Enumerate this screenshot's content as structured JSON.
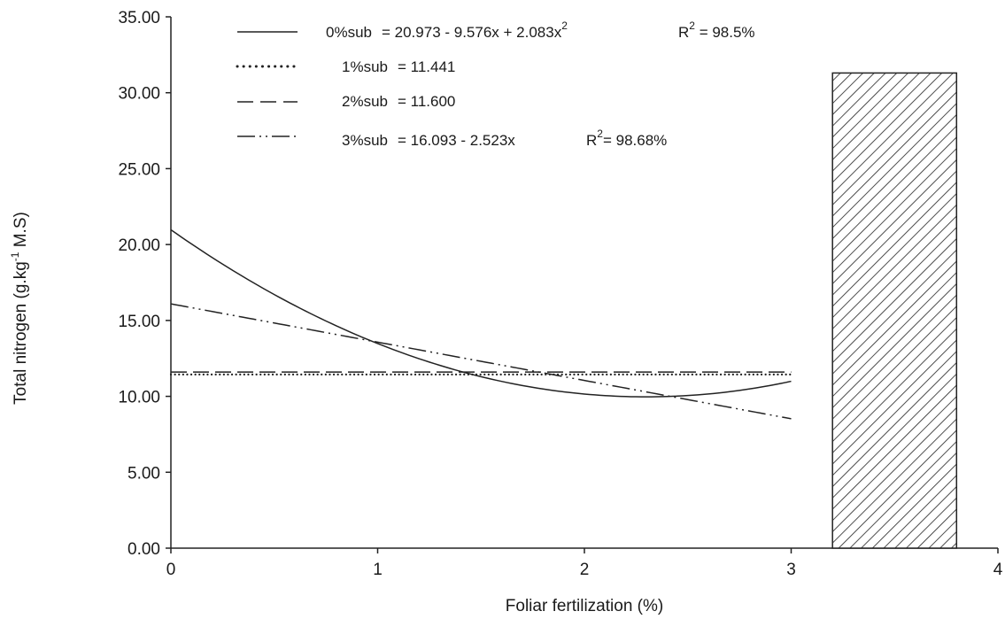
{
  "chart_data": {
    "type": "line",
    "xlabel": "Foliar fertilization (%)",
    "ylabel": "Total nitrogen (g.kg",
    "ylabel_sup": "-1",
    "ylabel_tail": " M.S)",
    "xlim": [
      0,
      4
    ],
    "ylim": [
      0,
      35
    ],
    "x_ticks": [
      "0",
      "1",
      "2",
      "3",
      "4"
    ],
    "y_ticks": [
      "0.00",
      "5.00",
      "10.00",
      "15.00",
      "20.00",
      "25.00",
      "30.00",
      "35.00"
    ],
    "grid": false,
    "legend_position": "top",
    "series": [
      {
        "name": "0%sub",
        "equation": "= 20.973 - 9.576x + 2.083x",
        "equation_sup": "2",
        "r2_label": "R",
        "r2_sup": "2",
        "r2_value": " = 98.5%",
        "style": "solid",
        "x_range": [
          0,
          3
        ],
        "coefficients": [
          20.973,
          -9.576,
          2.083
        ]
      },
      {
        "name": "1%sub",
        "equation": "= 11.441",
        "style": "dotted",
        "x_range": [
          0,
          3
        ],
        "coefficients": [
          11.441
        ]
      },
      {
        "name": "2%sub",
        "equation": "= 11.600",
        "style": "dashed",
        "x_range": [
          0,
          3
        ],
        "coefficients": [
          11.6
        ]
      },
      {
        "name": "3%sub",
        "equation": "= 16.093 - 2.523x",
        "r2_label": "R",
        "r2_sup": "2",
        "r2_value": "= 98.68%",
        "style": "dashdotdot",
        "x_range": [
          0,
          3
        ],
        "coefficients": [
          16.093,
          -2.523
        ]
      }
    ],
    "bar": {
      "x_range": [
        3.2,
        3.8
      ],
      "value": 31.3,
      "pattern": "diagonal-hatch"
    }
  }
}
